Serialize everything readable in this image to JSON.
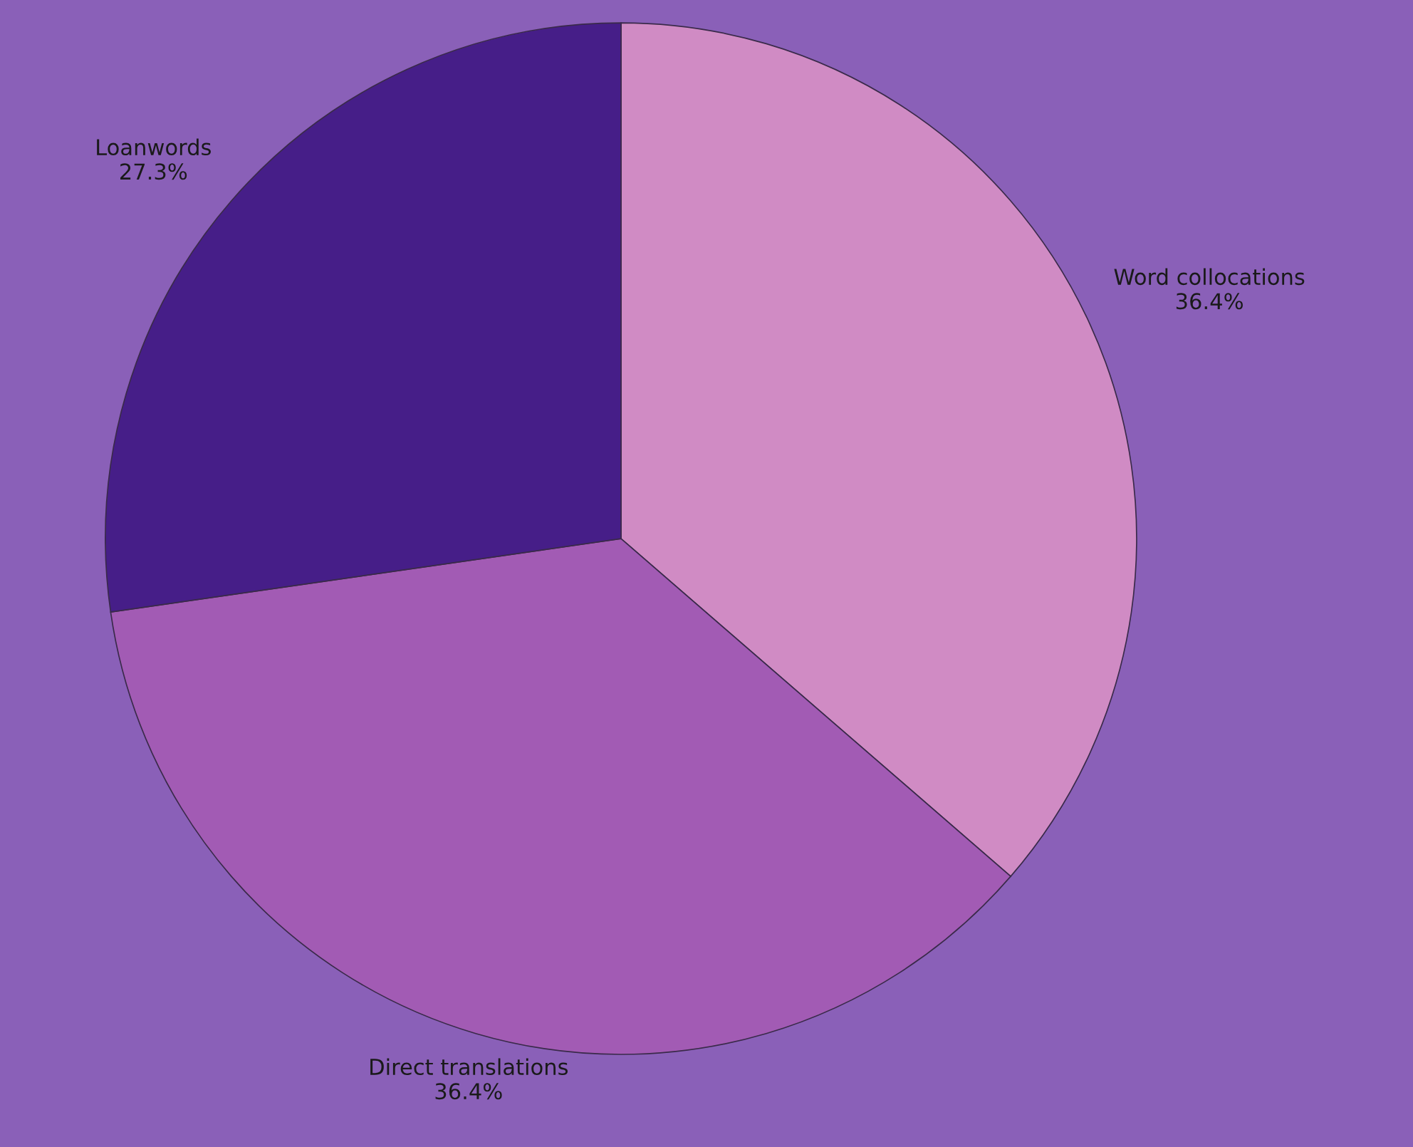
{
  "chart_data": {
    "type": "pie",
    "categories": [
      "Word collocations",
      "Direct translations",
      "Loanwords"
    ],
    "values": [
      36.4,
      36.4,
      27.3
    ],
    "value_labels": [
      "36.4%",
      "36.4%",
      "27.3%"
    ],
    "colors": [
      "#d08bc4",
      "#a25bb4",
      "#461e88"
    ],
    "legend": false
  }
}
